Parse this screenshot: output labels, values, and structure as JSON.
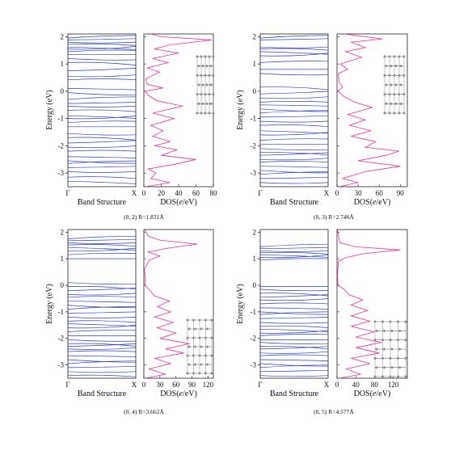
{
  "figure": {
    "band_xlabel": "Band Structure",
    "dos_xlabel": "DOS(e/eV)",
    "ylabel": "Energy (eV)",
    "band_k_labels": [
      "Γ",
      "X"
    ]
  },
  "chart_data": [
    {
      "type": "line",
      "caption": "(0, 2) R=1.831Å",
      "ylim": [
        -3.5,
        2.1
      ],
      "y_ticks": [
        -3,
        -2,
        -1,
        0,
        1,
        2
      ],
      "band_x_ticks": [
        "Γ",
        "X"
      ],
      "band_energies": [
        1.95,
        1.88,
        1.8,
        1.72,
        1.62,
        1.55,
        1.45,
        1.35,
        1.2,
        1.05,
        0.75,
        0.55,
        0.42,
        0.1,
        -0.05,
        -0.3,
        -0.45,
        -0.55,
        -0.7,
        -0.9,
        -1.0,
        -1.15,
        -1.3,
        -1.55,
        -1.7,
        -1.9,
        -2.05,
        -2.2,
        -2.4,
        -2.55,
        -2.65,
        -2.8,
        -2.95,
        -3.15,
        -3.3
      ],
      "dos_x_ticks": [
        0,
        20,
        40,
        60,
        80
      ],
      "dos_xlim": [
        0,
        80
      ],
      "dos_curve": [
        {
          "e": -3.5,
          "v": 2
        },
        {
          "e": -3.35,
          "v": 30
        },
        {
          "e": -3.2,
          "v": 8
        },
        {
          "e": -3.0,
          "v": 14
        },
        {
          "e": -2.85,
          "v": 5
        },
        {
          "e": -2.65,
          "v": 40
        },
        {
          "e": -2.5,
          "v": 60
        },
        {
          "e": -2.35,
          "v": 20
        },
        {
          "e": -2.15,
          "v": 38
        },
        {
          "e": -2.0,
          "v": 12
        },
        {
          "e": -1.85,
          "v": 30
        },
        {
          "e": -1.65,
          "v": 10
        },
        {
          "e": -1.45,
          "v": 22
        },
        {
          "e": -1.25,
          "v": 8
        },
        {
          "e": -1.0,
          "v": 35
        },
        {
          "e": -0.8,
          "v": 10
        },
        {
          "e": -0.55,
          "v": 45
        },
        {
          "e": -0.35,
          "v": 15
        },
        {
          "e": -0.15,
          "v": 5
        },
        {
          "e": 0.0,
          "v": 1
        },
        {
          "e": 0.12,
          "v": 22
        },
        {
          "e": 0.25,
          "v": 4
        },
        {
          "e": 0.45,
          "v": 2
        },
        {
          "e": 0.7,
          "v": 18
        },
        {
          "e": 0.85,
          "v": 4
        },
        {
          "e": 1.05,
          "v": 28
        },
        {
          "e": 1.2,
          "v": 10
        },
        {
          "e": 1.4,
          "v": 40
        },
        {
          "e": 1.55,
          "v": 12
        },
        {
          "e": 1.7,
          "v": 30
        },
        {
          "e": 1.88,
          "v": 78
        },
        {
          "e": 2.0,
          "v": 20
        },
        {
          "e": 2.1,
          "v": 8
        }
      ]
    },
    {
      "type": "line",
      "caption": "(0, 3) R=2.746Å",
      "ylim": [
        -3.5,
        2.1
      ],
      "y_ticks": [
        -3,
        -2,
        -1,
        0,
        1,
        2
      ],
      "band_x_ticks": [
        "Γ",
        "X"
      ],
      "band_energies": [
        1.95,
        1.88,
        1.62,
        1.55,
        1.45,
        1.3,
        1.05,
        0.8,
        0.65,
        0.15,
        -0.1,
        -0.25,
        -0.4,
        -0.5,
        -0.65,
        -0.8,
        -0.95,
        -1.1,
        -1.25,
        -1.45,
        -1.6,
        -1.8,
        -1.95,
        -2.1,
        -2.25,
        -2.35,
        -2.5,
        -2.6,
        -2.75,
        -2.9,
        -3.05,
        -3.2,
        -3.35
      ],
      "dos_x_ticks": [
        0,
        30,
        60,
        90
      ],
      "dos_xlim": [
        0,
        100
      ],
      "dos_curve": [
        {
          "e": -3.5,
          "v": 3
        },
        {
          "e": -3.35,
          "v": 30
        },
        {
          "e": -3.2,
          "v": 8
        },
        {
          "e": -2.95,
          "v": 40
        },
        {
          "e": -2.75,
          "v": 90
        },
        {
          "e": -2.55,
          "v": 30
        },
        {
          "e": -2.35,
          "v": 70
        },
        {
          "e": -2.2,
          "v": 88
        },
        {
          "e": -2.05,
          "v": 40
        },
        {
          "e": -1.85,
          "v": 55
        },
        {
          "e": -1.65,
          "v": 20
        },
        {
          "e": -1.45,
          "v": 48
        },
        {
          "e": -1.25,
          "v": 18
        },
        {
          "e": -1.05,
          "v": 40
        },
        {
          "e": -0.85,
          "v": 15
        },
        {
          "e": -0.6,
          "v": 50
        },
        {
          "e": -0.4,
          "v": 25
        },
        {
          "e": -0.2,
          "v": 10
        },
        {
          "e": 0.0,
          "v": 1
        },
        {
          "e": 0.15,
          "v": 8
        },
        {
          "e": 0.35,
          "v": 3
        },
        {
          "e": 0.65,
          "v": 2
        },
        {
          "e": 0.8,
          "v": 15
        },
        {
          "e": 1.0,
          "v": 5
        },
        {
          "e": 1.25,
          "v": 35
        },
        {
          "e": 1.45,
          "v": 12
        },
        {
          "e": 1.6,
          "v": 40
        },
        {
          "e": 1.8,
          "v": 20
        },
        {
          "e": 1.92,
          "v": 65
        },
        {
          "e": 2.05,
          "v": 25
        },
        {
          "e": 2.1,
          "v": 10
        }
      ]
    },
    {
      "type": "line",
      "caption": "(0, 4) R=3.662Å",
      "ylim": [
        -3.5,
        2.1
      ],
      "y_ticks": [
        -3,
        -2,
        -1,
        0,
        1,
        2
      ],
      "band_x_ticks": [
        "Γ",
        "X"
      ],
      "band_energies": [
        1.75,
        1.68,
        1.6,
        1.52,
        1.42,
        1.3,
        1.15,
        1.0,
        0.1,
        -0.05,
        -0.2,
        -0.35,
        -0.45,
        -0.6,
        -0.75,
        -0.9,
        -1.05,
        -1.2,
        -1.35,
        -1.45,
        -1.6,
        -1.75,
        -1.9,
        -2.05,
        -2.2,
        -2.3,
        -2.4,
        -2.5,
        -2.65,
        -2.8,
        -2.95,
        -3.1,
        -3.25,
        -3.4
      ],
      "dos_x_ticks": [
        0,
        30,
        60,
        90,
        120
      ],
      "dos_xlim": [
        0,
        130
      ],
      "dos_curve": [
        {
          "e": -3.5,
          "v": 3
        },
        {
          "e": -3.35,
          "v": 40
        },
        {
          "e": -3.15,
          "v": 10
        },
        {
          "e": -2.95,
          "v": 50
        },
        {
          "e": -2.75,
          "v": 20
        },
        {
          "e": -2.55,
          "v": 75
        },
        {
          "e": -2.4,
          "v": 40
        },
        {
          "e": -2.2,
          "v": 85
        },
        {
          "e": -2.0,
          "v": 30
        },
        {
          "e": -1.8,
          "v": 60
        },
        {
          "e": -1.6,
          "v": 25
        },
        {
          "e": -1.4,
          "v": 55
        },
        {
          "e": -1.2,
          "v": 20
        },
        {
          "e": -1.0,
          "v": 50
        },
        {
          "e": -0.8,
          "v": 25
        },
        {
          "e": -0.6,
          "v": 48
        },
        {
          "e": -0.4,
          "v": 20
        },
        {
          "e": -0.2,
          "v": 12
        },
        {
          "e": 0.0,
          "v": 2
        },
        {
          "e": 0.2,
          "v": 3
        },
        {
          "e": 0.6,
          "v": 1
        },
        {
          "e": 0.95,
          "v": 10
        },
        {
          "e": 1.1,
          "v": 30
        },
        {
          "e": 1.25,
          "v": 8
        },
        {
          "e": 1.4,
          "v": 45
        },
        {
          "e": 1.55,
          "v": 100
        },
        {
          "e": 1.7,
          "v": 30
        },
        {
          "e": 1.85,
          "v": 8
        },
        {
          "e": 2.1,
          "v": 2
        }
      ]
    },
    {
      "type": "line",
      "caption": "(0, 5) R=4.577Å",
      "ylim": [
        -3.5,
        2.1
      ],
      "y_ticks": [
        -3,
        -2,
        -1,
        0,
        1,
        2
      ],
      "band_x_ticks": [
        "Γ",
        "X"
      ],
      "band_energies": [
        1.45,
        1.38,
        1.3,
        1.22,
        1.15,
        1.05,
        0.95,
        -0.05,
        -0.15,
        -0.3,
        -0.45,
        -0.55,
        -0.7,
        -0.85,
        -1.0,
        -1.1,
        -1.25,
        -1.4,
        -1.55,
        -1.65,
        -1.8,
        -1.9,
        -2.05,
        -2.15,
        -2.3,
        -2.4,
        -2.55,
        -2.65,
        -2.8,
        -2.95,
        -3.1,
        -3.25,
        -3.4
      ],
      "dos_x_ticks": [
        0,
        40,
        80,
        120
      ],
      "dos_xlim": [
        0,
        150
      ],
      "dos_curve": [
        {
          "e": -3.5,
          "v": 5
        },
        {
          "e": -3.35,
          "v": 50
        },
        {
          "e": -3.15,
          "v": 20
        },
        {
          "e": -2.95,
          "v": 70
        },
        {
          "e": -2.75,
          "v": 30
        },
        {
          "e": -2.55,
          "v": 90
        },
        {
          "e": -2.35,
          "v": 40
        },
        {
          "e": -2.15,
          "v": 95
        },
        {
          "e": -1.95,
          "v": 40
        },
        {
          "e": -1.75,
          "v": 80
        },
        {
          "e": -1.55,
          "v": 30
        },
        {
          "e": -1.35,
          "v": 70
        },
        {
          "e": -1.15,
          "v": 30
        },
        {
          "e": -0.95,
          "v": 65
        },
        {
          "e": -0.75,
          "v": 30
        },
        {
          "e": -0.55,
          "v": 55
        },
        {
          "e": -0.35,
          "v": 25
        },
        {
          "e": -0.15,
          "v": 15
        },
        {
          "e": 0.0,
          "v": 2
        },
        {
          "e": 0.4,
          "v": 1
        },
        {
          "e": 0.9,
          "v": 3
        },
        {
          "e": 1.05,
          "v": 20
        },
        {
          "e": 1.2,
          "v": 60
        },
        {
          "e": 1.33,
          "v": 135
        },
        {
          "e": 1.45,
          "v": 40
        },
        {
          "e": 1.6,
          "v": 6
        },
        {
          "e": 2.1,
          "v": 1
        }
      ]
    }
  ]
}
